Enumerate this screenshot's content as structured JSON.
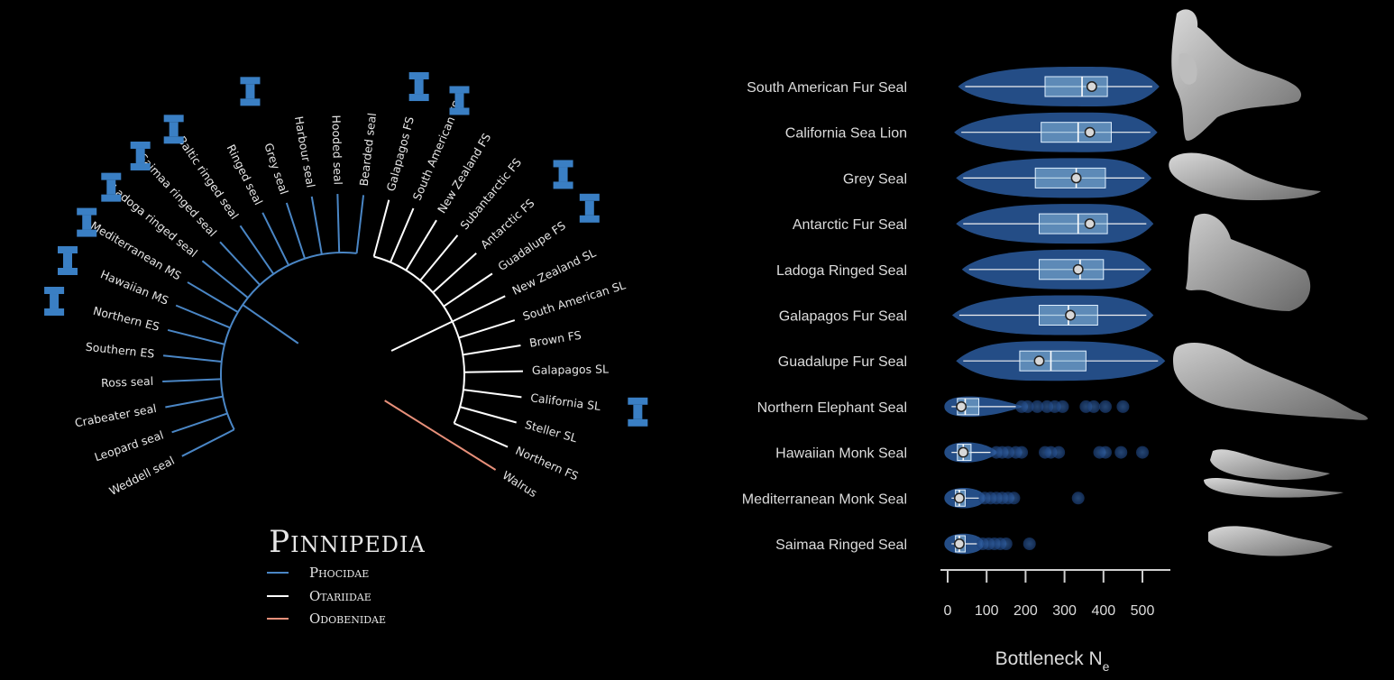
{
  "tree": {
    "title": "Pinnipedia",
    "legend": [
      {
        "label": "Phocidae",
        "color": "#4a86c5"
      },
      {
        "label": "Otariidae",
        "color": "#ffffff"
      },
      {
        "label": "Odobenidae",
        "color": "#e8907a"
      }
    ],
    "leaves": [
      {
        "name": "Weddell seal",
        "family": "Phocidae",
        "bottleneck_marker": false
      },
      {
        "name": "Leopard seal",
        "family": "Phocidae",
        "bottleneck_marker": false
      },
      {
        "name": "Crabeater seal",
        "family": "Phocidae",
        "bottleneck_marker": false
      },
      {
        "name": "Ross seal",
        "family": "Phocidae",
        "bottleneck_marker": false
      },
      {
        "name": "Southern ES",
        "family": "Phocidae",
        "bottleneck_marker": false
      },
      {
        "name": "Northern ES",
        "family": "Phocidae",
        "bottleneck_marker": true
      },
      {
        "name": "Hawaiian MS",
        "family": "Phocidae",
        "bottleneck_marker": true
      },
      {
        "name": "Mediterranean MS",
        "family": "Phocidae",
        "bottleneck_marker": true
      },
      {
        "name": "Ladoga ringed seal",
        "family": "Phocidae",
        "bottleneck_marker": true
      },
      {
        "name": "Saimaa ringed seal",
        "family": "Phocidae",
        "bottleneck_marker": true
      },
      {
        "name": "Baltic ringed seal",
        "family": "Phocidae",
        "bottleneck_marker": true
      },
      {
        "name": "Ringed seal",
        "family": "Phocidae",
        "bottleneck_marker": false
      },
      {
        "name": "Grey seal",
        "family": "Phocidae",
        "bottleneck_marker": true
      },
      {
        "name": "Harbour seal",
        "family": "Phocidae",
        "bottleneck_marker": false
      },
      {
        "name": "Hooded seal",
        "family": "Phocidae",
        "bottleneck_marker": false
      },
      {
        "name": "Bearded seal",
        "family": "Phocidae",
        "bottleneck_marker": false
      },
      {
        "name": "Galapagos FS",
        "family": "Otariidae",
        "bottleneck_marker": true
      },
      {
        "name": "South American FS",
        "family": "Otariidae",
        "bottleneck_marker": true
      },
      {
        "name": "New Zealand FS",
        "family": "Otariidae",
        "bottleneck_marker": false
      },
      {
        "name": "Subantarctic FS",
        "family": "Otariidae",
        "bottleneck_marker": false
      },
      {
        "name": "Antarctic FS",
        "family": "Otariidae",
        "bottleneck_marker": true
      },
      {
        "name": "Guadalupe FS",
        "family": "Otariidae",
        "bottleneck_marker": true
      },
      {
        "name": "New Zealand SL",
        "family": "Otariidae",
        "bottleneck_marker": false
      },
      {
        "name": "South American SL",
        "family": "Otariidae",
        "bottleneck_marker": false
      },
      {
        "name": "Brown FS",
        "family": "Otariidae",
        "bottleneck_marker": false
      },
      {
        "name": "Galapagos SL",
        "family": "Otariidae",
        "bottleneck_marker": false
      },
      {
        "name": "California SL",
        "family": "Otariidae",
        "bottleneck_marker": true
      },
      {
        "name": "Steller SL",
        "family": "Otariidae",
        "bottleneck_marker": false
      },
      {
        "name": "Northern FS",
        "family": "Otariidae",
        "bottleneck_marker": false
      },
      {
        "name": "Walrus",
        "family": "Odobenidae",
        "bottleneck_marker": false
      }
    ]
  },
  "chart_data": {
    "type": "boxplot",
    "title": "",
    "xlabel": "Bottleneck N",
    "xlabel_subscript": "e",
    "ylabel": "",
    "xlim": [
      0,
      550
    ],
    "xticks": [
      0,
      100,
      200,
      300,
      400,
      500
    ],
    "grid": false,
    "fill_color": "#2a5a9e",
    "box_color": "#8cbde0",
    "mean_marker_color": "#d8d8d8",
    "series": [
      {
        "name": "South American Fur Seal",
        "whisker_low": 45,
        "q1": 250,
        "median": 345,
        "q3": 410,
        "whisker_high": 525,
        "mean": 370,
        "outliers": []
      },
      {
        "name": "California Sea Lion",
        "whisker_low": 35,
        "q1": 240,
        "median": 335,
        "q3": 420,
        "whisker_high": 520,
        "mean": 365,
        "outliers": []
      },
      {
        "name": "Grey Seal",
        "whisker_low": 40,
        "q1": 225,
        "median": 330,
        "q3": 405,
        "whisker_high": 505,
        "mean": 330,
        "outliers": []
      },
      {
        "name": "Antarctic Fur Seal",
        "whisker_low": 40,
        "q1": 235,
        "median": 335,
        "q3": 410,
        "whisker_high": 510,
        "mean": 365,
        "outliers": []
      },
      {
        "name": "Ladoga Ringed Seal",
        "whisker_low": 55,
        "q1": 235,
        "median": 340,
        "q3": 400,
        "whisker_high": 505,
        "mean": 335,
        "outliers": []
      },
      {
        "name": "Galapagos Fur Seal",
        "whisker_low": 30,
        "q1": 235,
        "median": 310,
        "q3": 385,
        "whisker_high": 510,
        "mean": 315,
        "outliers": []
      },
      {
        "name": "Guadalupe Fur Seal",
        "whisker_low": 40,
        "q1": 185,
        "median": 265,
        "q3": 355,
        "whisker_high": 540,
        "mean": 235,
        "outliers": []
      },
      {
        "name": "Northern Elephant Seal",
        "whisker_low": 10,
        "q1": 25,
        "median": 45,
        "q3": 80,
        "whisker_high": 175,
        "mean": 35,
        "outliers": [
          190,
          205,
          230,
          255,
          275,
          295,
          355,
          375,
          405,
          450
        ]
      },
      {
        "name": "Hawaiian Monk Seal",
        "whisker_low": 10,
        "q1": 25,
        "median": 40,
        "q3": 60,
        "whisker_high": 110,
        "mean": 40,
        "outliers": [
          125,
          140,
          155,
          175,
          190,
          250,
          265,
          285,
          390,
          405,
          445,
          500
        ]
      },
      {
        "name": "Mediterranean Monk Seal",
        "whisker_low": 10,
        "q1": 20,
        "median": 30,
        "q3": 45,
        "whisker_high": 80,
        "mean": 30,
        "outliers": [
          95,
          110,
          125,
          140,
          155,
          170,
          335
        ]
      },
      {
        "name": "Saimaa Ringed Seal",
        "whisker_low": 10,
        "q1": 20,
        "median": 30,
        "q3": 45,
        "whisker_high": 75,
        "mean": 30,
        "outliers": [
          90,
          105,
          120,
          135,
          150,
          210
        ]
      }
    ]
  },
  "illustrations": [
    "fur-seal-illustration",
    "harbour-seal-illustration",
    "sea-lion-illustration",
    "elephant-seal-illustration",
    "monk-seal-illustration",
    "ringed-seal-illustration"
  ]
}
